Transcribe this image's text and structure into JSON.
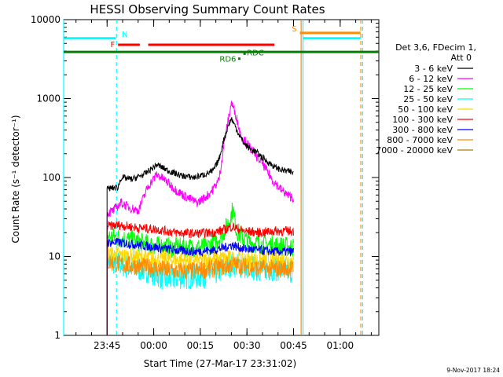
{
  "chart_data": {
    "type": "line",
    "title": "HESSI Observing Summary Count Rates",
    "xlabel": "Start Time (27-Mar-17 23:31:02)",
    "ylabel": "Count Rate (s⁻¹ detector⁻¹)",
    "yscale": "log",
    "ylim": [
      1,
      10000
    ],
    "xlim_minutes_from_start": [
      0,
      101.4
    ],
    "y_ticks": [
      "1",
      "10",
      "100",
      "1000",
      "10000"
    ],
    "x_ticks": [
      {
        "label": "23:45",
        "minute": 13.97
      },
      {
        "label": "00:00",
        "minute": 28.97
      },
      {
        "label": "00:15",
        "minute": 43.97
      },
      {
        "label": "00:30",
        "minute": 58.97
      },
      {
        "label": "00:45",
        "minute": 73.97
      },
      {
        "label": "01:00",
        "minute": 88.97
      }
    ],
    "legend": {
      "header1": "Det 3,6, FDecim 1,",
      "header2": "Att 0",
      "position": "right"
    },
    "series": [
      {
        "name": "3 - 6 keV",
        "color": "#000000",
        "x": [
          13.97,
          17.5,
          18.5,
          22,
          26,
          30,
          34,
          38,
          42,
          45.5,
          48,
          50,
          51.5,
          53,
          54,
          56,
          58,
          60,
          62,
          65,
          68,
          70,
          72,
          73.97
        ],
        "y": [
          72,
          75,
          100,
          95,
          110,
          145,
          120,
          105,
          100,
          110,
          120,
          170,
          300,
          460,
          560,
          380,
          270,
          230,
          210,
          165,
          135,
          125,
          120,
          115
        ]
      },
      {
        "name": "6 - 12 keV",
        "color": "#ff00ff",
        "x": [
          13.97,
          16,
          18.5,
          21,
          24,
          27,
          30,
          33,
          36,
          40,
          43,
          46,
          48,
          50,
          51.5,
          53,
          54,
          55.5,
          57,
          59,
          61,
          64,
          67,
          70,
          72,
          73.97
        ],
        "y": [
          35,
          38,
          48,
          42,
          38,
          75,
          110,
          90,
          70,
          55,
          48,
          58,
          70,
          95,
          250,
          550,
          900,
          600,
          340,
          270,
          210,
          150,
          95,
          70,
          60,
          55
        ]
      },
      {
        "name": "12 - 25 keV",
        "color": "#00ff00",
        "x": [
          13.97,
          18,
          22,
          28,
          34,
          40,
          46,
          50,
          52,
          53.5,
          54.5,
          55.5,
          57,
          60,
          66,
          73.97
        ],
        "y": [
          18,
          17,
          16,
          14,
          13,
          13,
          13,
          17,
          22,
          30,
          40,
          22,
          18,
          15,
          14,
          13
        ]
      },
      {
        "name": "25 - 50 keV",
        "color": "#00ffff",
        "x": [
          13.97,
          18,
          23,
          28,
          33,
          38,
          43,
          48,
          52,
          54,
          57,
          62,
          68,
          73.97
        ],
        "y": [
          9,
          8,
          7,
          6.5,
          5,
          5.5,
          5.5,
          6,
          7,
          8,
          7.5,
          7,
          7,
          6.5
        ]
      },
      {
        "name": "50 - 100 keV",
        "color": "#ffd700",
        "x": [
          13.97,
          20,
          28,
          36,
          44,
          52,
          60,
          68,
          73.97
        ],
        "y": [
          11,
          10,
          9.5,
          9,
          9,
          9.5,
          9,
          9,
          9
        ]
      },
      {
        "name": "100 - 300 keV",
        "color": "#ff0000",
        "x": [
          13.97,
          18,
          24,
          30,
          36,
          42,
          48,
          52,
          54,
          58,
          63,
          68,
          73.97
        ],
        "y": [
          24,
          25,
          23,
          22,
          20,
          19.5,
          20,
          22,
          24,
          21,
          20,
          21,
          21
        ]
      },
      {
        "name": "300 - 800 keV",
        "color": "#0000ff",
        "x": [
          13.97,
          18,
          24,
          30,
          36,
          42,
          48,
          52,
          54,
          58,
          63,
          68,
          73.97
        ],
        "y": [
          15,
          15,
          14,
          13,
          12,
          11.5,
          12,
          13,
          14,
          12.5,
          12,
          11.5,
          11.5
        ]
      },
      {
        "name": "800 - 7000 keV",
        "color": "#ff8c00",
        "x": [
          13.97,
          18,
          24,
          30,
          36,
          42,
          48,
          52,
          54,
          58,
          63,
          68,
          73.97
        ],
        "y": [
          8.5,
          8,
          7.5,
          7,
          6.5,
          6.5,
          7,
          7.5,
          8,
          7.5,
          7,
          7,
          7
        ]
      },
      {
        "name": "7000 - 20000 keV",
        "color": "#a08000",
        "x": [],
        "y": []
      }
    ],
    "flags": [
      {
        "label": "N",
        "color": "#00ffff",
        "x_minutes": [
          0,
          16.7
        ],
        "y": 5800
      },
      {
        "label": "F",
        "color": "#ff0000",
        "x_minutes": [
          [
            17.5,
            24.5
          ],
          [
            27.2,
            67.8
          ]
        ],
        "y": 4800
      },
      {
        "label": "",
        "color": "#008000",
        "x_minutes": [
          0,
          101.4
        ],
        "y": 3900
      },
      {
        "label": "RD6",
        "color": "#008000",
        "x_minutes": [
          56.5,
          56.5
        ],
        "y": 3200
      },
      {
        "label": "RDC",
        "color": "#008000",
        "x_minutes": [
          58.2,
          58.2
        ],
        "y": 3700
      },
      {
        "label": "S",
        "color": "#ff8c00",
        "x_minutes": [
          76.0,
          95.5
        ],
        "y": 6800
      },
      {
        "label": "",
        "color": "#00ffff",
        "x_minutes": [
          77.0,
          95.5
        ],
        "y": 5800
      }
    ],
    "vertical_markers": [
      {
        "x_minutes": 0,
        "color": "#00ffff",
        "style": "solid"
      },
      {
        "x_minutes": 17.0,
        "color": "#00ffff",
        "style": "dashed"
      },
      {
        "x_minutes": 76.4,
        "color": "#ff8c00",
        "style": "solid"
      },
      {
        "x_minutes": 77.0,
        "color": "#00ffff",
        "style": "solid"
      },
      {
        "x_minutes": 95.6,
        "color": "#ff8c00",
        "style": "dashed"
      },
      {
        "x_minutes": 96.2,
        "color": "#00ffff",
        "style": "dashed"
      }
    ]
  },
  "footer": {
    "timestamp": "9-Nov-2017 18:24"
  }
}
